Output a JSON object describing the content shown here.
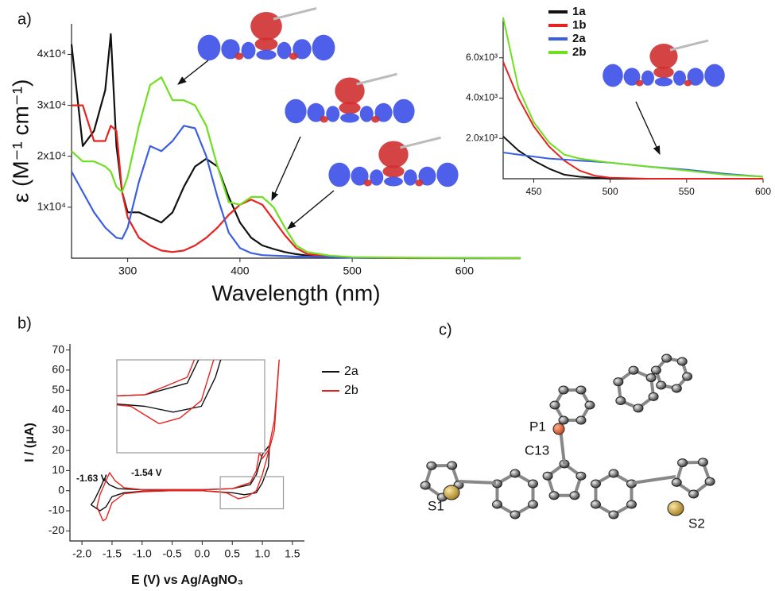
{
  "panel_labels": [
    "a)",
    "b)",
    "c)"
  ],
  "structure_labels": [
    "S1",
    "S2",
    "P1",
    "C13"
  ],
  "chart_data": [
    {
      "type": "line",
      "xlabel": "Wavelength (nm)",
      "ylabel": "ε (M⁻¹ cm⁻¹)",
      "x": [
        250,
        260,
        270,
        280,
        285,
        290,
        295,
        300,
        310,
        320,
        330,
        340,
        350,
        360,
        370,
        380,
        390,
        400,
        410,
        420,
        430,
        440,
        450,
        460,
        480,
        500,
        550,
        600,
        650
      ],
      "xlim": [
        250,
        650
      ],
      "xticks": [
        300,
        400,
        500,
        600
      ],
      "ylim": [
        0,
        46000
      ],
      "yticks": [
        {
          "value": 10000,
          "label": "1x10⁴"
        },
        {
          "value": 20000,
          "label": "2x10⁴"
        },
        {
          "value": 30000,
          "label": "3x10⁴"
        },
        {
          "value": 40000,
          "label": "4x10⁴"
        }
      ],
      "series": [
        {
          "name": "1a",
          "color": "#111111",
          "values": [
            42000,
            22000,
            25000,
            33000,
            44000,
            22000,
            13000,
            9000,
            9000,
            8000,
            7000,
            9000,
            14000,
            18000,
            19500,
            18000,
            12000,
            7000,
            4000,
            2500,
            1800,
            1200,
            800,
            500,
            200,
            100,
            50,
            0,
            0
          ]
        },
        {
          "name": "1b",
          "color": "#e8231f",
          "values": [
            30000,
            30000,
            23000,
            23000,
            26000,
            25000,
            13000,
            8000,
            4000,
            2500,
            1500,
            1200,
            1500,
            2500,
            4000,
            6000,
            8500,
            10500,
            11500,
            10500,
            7500,
            4500,
            2000,
            800,
            300,
            100,
            0,
            0,
            0
          ]
        },
        {
          "name": "2a",
          "color": "#3b5fe0",
          "values": [
            17000,
            13000,
            9000,
            6000,
            5000,
            4000,
            3800,
            6000,
            15000,
            22000,
            21000,
            23000,
            26000,
            25500,
            20000,
            12000,
            5000,
            2000,
            1000,
            600,
            500,
            400,
            300,
            300,
            200,
            100,
            60,
            20,
            0
          ]
        },
        {
          "name": "2b",
          "color": "#6ee01e",
          "values": [
            21000,
            19000,
            19000,
            18000,
            17000,
            14000,
            13000,
            16000,
            26000,
            34000,
            35500,
            31000,
            31000,
            30000,
            26000,
            18000,
            11000,
            10500,
            12000,
            12000,
            10000,
            6000,
            2500,
            1200,
            500,
            200,
            100,
            50,
            0
          ]
        }
      ],
      "legend": "upper right"
    },
    {
      "type": "line",
      "x": [
        430,
        440,
        450,
        460,
        470,
        480,
        490,
        500,
        525,
        550,
        575,
        600
      ],
      "xlim": [
        430,
        600
      ],
      "xticks": [
        450,
        500,
        550,
        600
      ],
      "ylim": [
        0,
        8000
      ],
      "yticks": [
        {
          "value": 2000,
          "label": "2.0x10³"
        },
        {
          "value": 4000,
          "label": "4.0x10³"
        },
        {
          "value": 6000,
          "label": "6.0x10³"
        }
      ],
      "series": [
        {
          "name": "1a",
          "color": "#111111",
          "values": [
            2100,
            1400,
            900,
            500,
            200,
            100,
            50,
            0,
            0,
            0,
            0,
            0
          ]
        },
        {
          "name": "1b",
          "color": "#e8231f",
          "values": [
            5800,
            4000,
            2600,
            1600,
            900,
            400,
            150,
            50,
            0,
            0,
            0,
            0
          ]
        },
        {
          "name": "2a",
          "color": "#3b5fe0",
          "values": [
            1300,
            1200,
            1100,
            1000,
            950,
            900,
            850,
            800,
            600,
            450,
            250,
            100
          ]
        },
        {
          "name": "2b",
          "color": "#6ee01e",
          "values": [
            8000,
            4500,
            2800,
            1800,
            1200,
            1000,
            900,
            800,
            600,
            400,
            200,
            100
          ]
        }
      ]
    },
    {
      "type": "line",
      "xlabel": "E (V) vs Ag/AgNO₃",
      "ylabel": "I / (μA)",
      "xlim": [
        -2.2,
        1.7
      ],
      "xticks": [
        {
          "value": -2,
          "label": "-2.0"
        },
        -1.5,
        {
          "value": -1,
          "label": "-1.0"
        },
        -0.5,
        {
          "value": 0,
          "label": "0.0"
        },
        0.5,
        {
          "value": 1,
          "label": "1.0"
        },
        1.5
      ],
      "ylim": [
        -25,
        73
      ],
      "yticks": [
        -20,
        -10,
        0,
        10,
        20,
        30,
        40,
        50,
        60,
        70
      ],
      "inset": {
        "xlim": [
          0.3,
          1.35
        ],
        "ylim": [
          -9,
          7
        ]
      },
      "annotations": [
        {
          "text": "-1.63 V",
          "color": "#111111"
        },
        {
          "text": "-1.54 V",
          "color": "#e8231f"
        }
      ],
      "series": [
        {
          "name": "2a",
          "color": "#111111",
          "x": [
            0.0,
            -0.5,
            -1.0,
            -1.3,
            -1.5,
            -1.6,
            -1.7,
            -1.85,
            -1.8,
            -1.7,
            -1.63,
            -1.55,
            -1.4,
            -1.0,
            0.0,
            0.5,
            0.8,
            0.9,
            1.0,
            1.1,
            1.12,
            1.1,
            1.0,
            0.9,
            0.7,
            0.5,
            0.0
          ],
          "values": [
            0,
            0,
            -0.3,
            -1,
            -3,
            -8,
            -10,
            -7,
            -5,
            1,
            6,
            3,
            1,
            0.5,
            0.5,
            1,
            3,
            8,
            18,
            22,
            22,
            12,
            4,
            -1,
            -2,
            -1,
            0
          ]
        },
        {
          "name": "2b",
          "color": "#e8231f",
          "x": [
            0.0,
            -0.5,
            -1.0,
            -1.3,
            -1.5,
            -1.6,
            -1.65,
            -1.75,
            -1.7,
            -1.6,
            -1.54,
            -1.45,
            -1.3,
            -1.0,
            0.0,
            0.5,
            0.8,
            0.9,
            0.95,
            1.0,
            1.1,
            1.2,
            1.28,
            1.2,
            1.0,
            0.9,
            0.75,
            0.6,
            0.4,
            0.0
          ],
          "values": [
            0,
            0,
            -0.5,
            -1.5,
            -6,
            -14,
            -15,
            -8,
            -2,
            5,
            9,
            5,
            1.5,
            0.5,
            0.5,
            1,
            4,
            10,
            19,
            16,
            20,
            35,
            65,
            30,
            8,
            0,
            -3,
            -4,
            -1,
            0
          ]
        }
      ]
    }
  ]
}
